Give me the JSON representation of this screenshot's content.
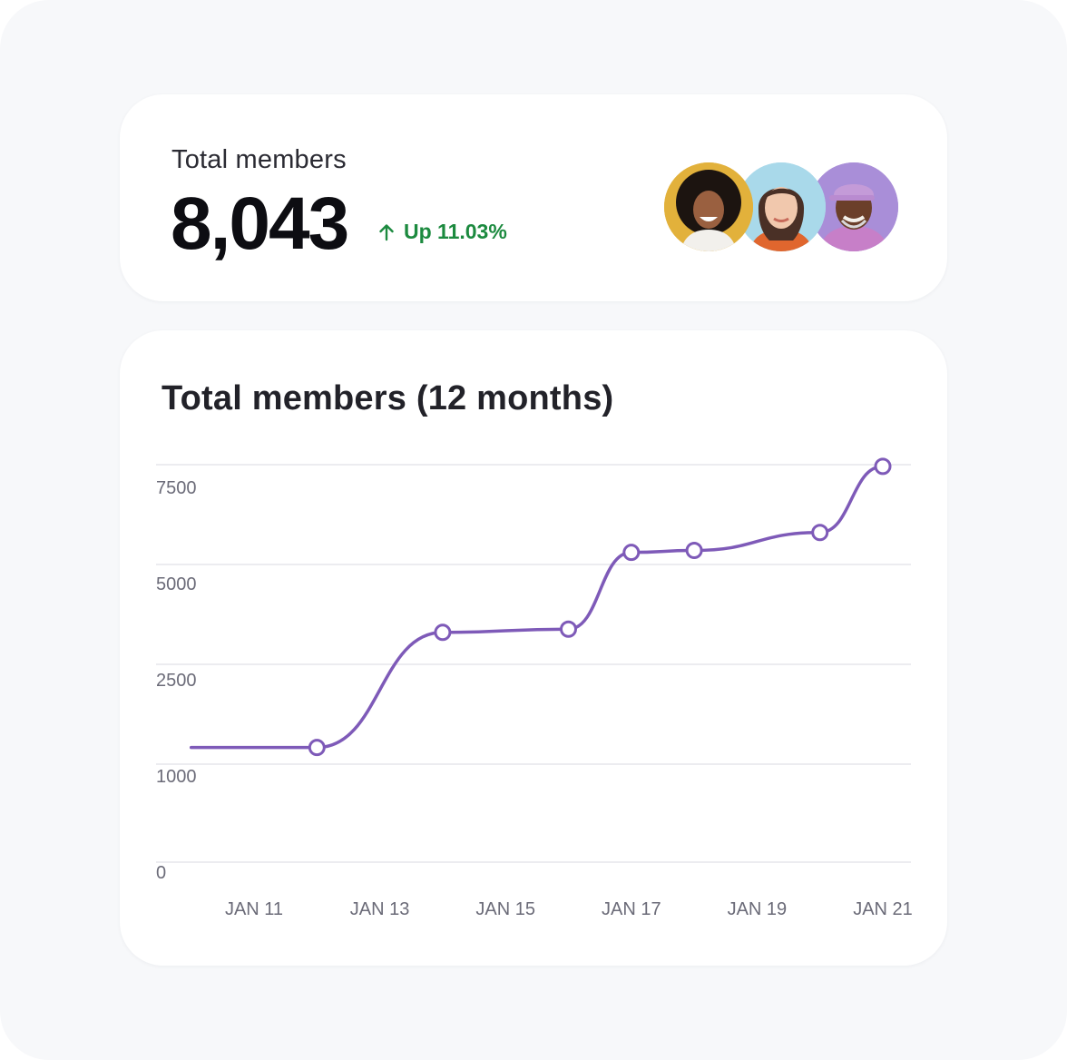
{
  "summary": {
    "label": "Total members",
    "value": "8,043",
    "trend_text": "Up 11.03%",
    "trend_color": "#1c8a3f",
    "trend_icon": "arrow-up-icon"
  },
  "avatars": [
    {
      "name": "avatar-1",
      "bg": "#e2b13b"
    },
    {
      "name": "avatar-2",
      "bg": "#a9d9ea"
    },
    {
      "name": "avatar-3",
      "bg": "#a98ed8"
    }
  ],
  "chart_data": {
    "type": "line",
    "title": "Total members (12 months)",
    "xlabel": "",
    "ylabel": "",
    "x_ticks": [
      "JAN 11",
      "JAN 13",
      "JAN 15",
      "JAN 17",
      "JAN 19",
      "JAN 21"
    ],
    "y_ticks": [
      "0",
      "1000",
      "2500",
      "5000",
      "7500"
    ],
    "grid": true,
    "line_color": "#7e5ab8",
    "series": [
      {
        "points": [
          {
            "x": "JAN 10",
            "y": 1250,
            "marker": false
          },
          {
            "x": "JAN 12",
            "y": 1250,
            "marker": true
          },
          {
            "x": "JAN 14",
            "y": 3300,
            "marker": true
          },
          {
            "x": "JAN 16",
            "y": 3380,
            "marker": true
          },
          {
            "x": "JAN 17",
            "y": 5370,
            "marker": true
          },
          {
            "x": "JAN 18",
            "y": 5430,
            "marker": true
          },
          {
            "x": "JAN 20",
            "y": 5980,
            "marker": true
          },
          {
            "x": "JAN 21",
            "y": 8043,
            "marker": true
          }
        ]
      }
    ]
  }
}
